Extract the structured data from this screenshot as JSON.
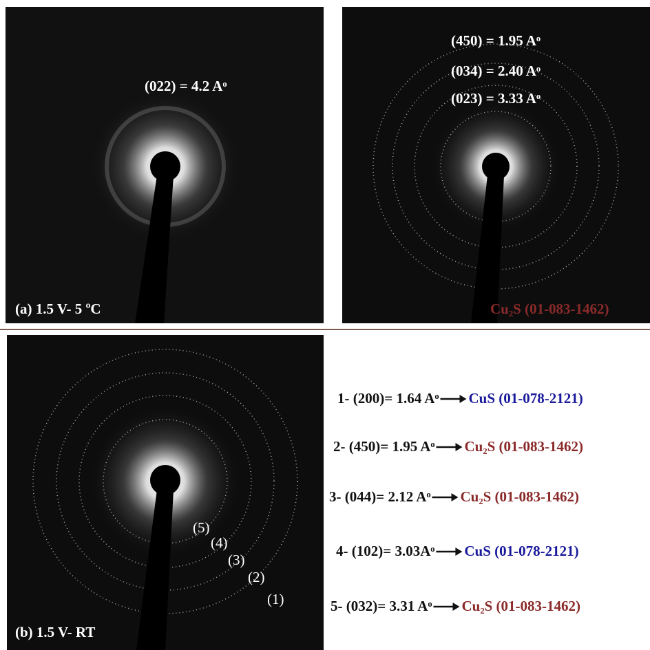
{
  "panels": [
    {
      "label": "(a) 1.5 V- 5 ºC",
      "annotations": [
        "(022)  = 4.2 Aᵒ"
      ]
    },
    {
      "label": "Cu₂S (01-083-1462)",
      "annotations": [
        "(450)  = 1.95 Aᵒ",
        "(034)  = 2.40 Aᵒ",
        "(023)  = 3.33 Aᵒ"
      ]
    },
    {
      "label": "(b) 1.5 V- RT",
      "annotations": [
        "(5)",
        "(4)",
        "(3)",
        "(2)",
        "(1)"
      ]
    }
  ],
  "legend": [
    {
      "entry": "1- (200)= 1.64 Aᵒ",
      "phase": "CuS (01-078-2121)",
      "color": "#1a1a9c"
    },
    {
      "entry": "2- (450)= 1.95 Aᵒ",
      "phase": "Cu₂S (01-083-1462)",
      "color": "#8b2a2a"
    },
    {
      "entry": "3- (044)= 2.12 Aᵒ",
      "phase": "Cu₂S (01-083-1462)",
      "color": "#8b2a2a"
    },
    {
      "entry": "4- (102)= 3.03Aᵒ ",
      "phase": "CuS (01-078-2121)",
      "color": "#1a1a9c"
    },
    {
      "entry": "5- (032)= 3.31 Aᵒ",
      "phase": "Cu₂S (01-083-1462)",
      "color": "#8b2a2a"
    }
  ]
}
